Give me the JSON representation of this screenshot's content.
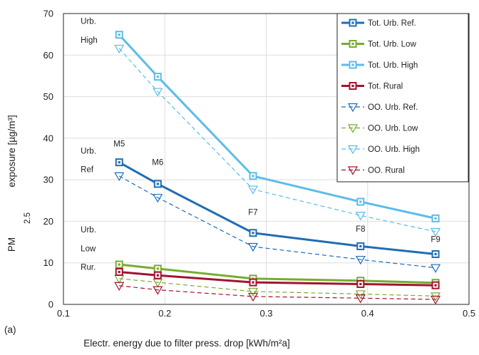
{
  "chart_data": {
    "type": "line",
    "panel_label": "(a)",
    "xlabel": "Electr. energy due to filter press. drop [kWh/m²a]",
    "ylabel": {
      "prefix": "PM",
      "subscript": "2.5",
      "suffix": "exposure [µg/m³]"
    },
    "xlim": [
      0.1,
      0.5
    ],
    "ylim": [
      0,
      70
    ],
    "xticks": [
      0.1,
      0.2,
      0.3,
      0.4,
      0.5
    ],
    "yticks": [
      0,
      10,
      20,
      30,
      40,
      50,
      60,
      70
    ],
    "grid": true,
    "legend_position": "top-right",
    "colors": {
      "dark_blue": "#1f6db5",
      "green": "#77ac30",
      "light_blue": "#5bbcea",
      "dark_red": "#a2142f"
    },
    "series": [
      {
        "name": "Tot. Urb. Ref.",
        "color": "#1f6db5",
        "style": "solid",
        "marker": "square",
        "x": [
          0.155,
          0.193,
          0.287,
          0.393,
          0.467
        ],
        "y": [
          34.2,
          29.0,
          17.2,
          14.0,
          12.1
        ]
      },
      {
        "name": "Tot. Urb. Low",
        "color": "#77ac30",
        "style": "solid",
        "marker": "square",
        "x": [
          0.155,
          0.193,
          0.287,
          0.393,
          0.467
        ],
        "y": [
          9.6,
          8.6,
          6.2,
          5.7,
          5.2
        ]
      },
      {
        "name": "Tot. Urb. High",
        "color": "#5bbcea",
        "style": "solid",
        "marker": "square",
        "x": [
          0.155,
          0.193,
          0.287,
          0.393,
          0.467
        ],
        "y": [
          64.9,
          54.8,
          30.9,
          24.7,
          20.7
        ]
      },
      {
        "name": "Tot. Rural",
        "color": "#a2142f",
        "style": "solid",
        "marker": "square",
        "x": [
          0.155,
          0.193,
          0.287,
          0.393,
          0.467
        ],
        "y": [
          7.8,
          7.0,
          5.3,
          4.9,
          4.6
        ]
      },
      {
        "name": "OO. Urb. Ref.",
        "color": "#1f6db5",
        "style": "dashed",
        "marker": "triangle-down",
        "x": [
          0.155,
          0.193,
          0.287,
          0.393,
          0.467
        ],
        "y": [
          30.9,
          25.7,
          13.9,
          10.8,
          8.8
        ]
      },
      {
        "name": "OO. Urb. Low",
        "color": "#77ac30",
        "style": "dashed",
        "marker": "triangle-down",
        "x": [
          0.155,
          0.193,
          0.287,
          0.393,
          0.467
        ],
        "y": [
          6.2,
          5.3,
          3.1,
          2.5,
          2.0
        ]
      },
      {
        "name": "OO. Urb. High",
        "color": "#5bbcea",
        "style": "dashed",
        "marker": "triangle-down",
        "x": [
          0.155,
          0.193,
          0.287,
          0.393,
          0.467
        ],
        "y": [
          61.6,
          51.2,
          27.7,
          21.4,
          17.5
        ]
      },
      {
        "name": "OO. Rural",
        "color": "#a2142f",
        "style": "dashed",
        "marker": "triangle-down",
        "x": [
          0.155,
          0.193,
          0.287,
          0.393,
          0.467
        ],
        "y": [
          4.5,
          3.5,
          1.9,
          1.5,
          1.2
        ]
      }
    ],
    "point_labels": [
      {
        "text": "M5",
        "x": 0.155,
        "y": 38.0
      },
      {
        "text": "M6",
        "x": 0.193,
        "y": 33.5
      },
      {
        "text": "F7",
        "x": 0.287,
        "y": 21.5
      },
      {
        "text": "F8",
        "x": 0.393,
        "y": 17.5
      },
      {
        "text": "F9",
        "x": 0.467,
        "y": 15.0
      }
    ],
    "group_labels": [
      {
        "text": "Urb.",
        "x": 0.117,
        "y": 67.5
      },
      {
        "text": "High",
        "x": 0.117,
        "y": 63.0
      },
      {
        "text": "Urb.",
        "x": 0.117,
        "y": 36.3
      },
      {
        "text": "Ref",
        "x": 0.117,
        "y": 31.8
      },
      {
        "text": "Urb.",
        "x": 0.117,
        "y": 17.3
      },
      {
        "text": "Low",
        "x": 0.117,
        "y": 12.8
      },
      {
        "text": "Rur.",
        "x": 0.117,
        "y": 8.3
      }
    ]
  }
}
